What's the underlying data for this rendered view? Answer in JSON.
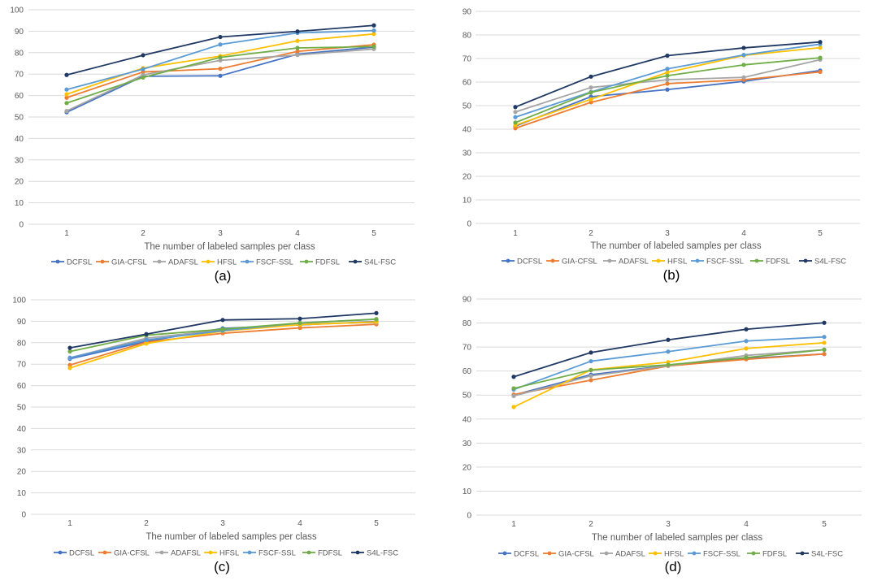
{
  "chart_data": [
    {
      "type": "line",
      "caption": "(a)",
      "title": "",
      "xlabel": "The number of labeled samples per class",
      "ylabel": "",
      "categories": [
        "1",
        "2",
        "3",
        "4",
        "5"
      ],
      "ylim": [
        0,
        100
      ],
      "yticks": [
        0,
        10,
        20,
        30,
        40,
        50,
        60,
        70,
        80,
        90,
        100
      ],
      "grid": true,
      "legend_position": "bottom",
      "series": [
        {
          "name": "DCFSL",
          "values": [
            52.2,
            69.0,
            69.2,
            79.3,
            82.6
          ]
        },
        {
          "name": "GIA-CFSL",
          "values": [
            59.0,
            71.0,
            72.5,
            80.6,
            83.7
          ]
        },
        {
          "name": "ADAFSL",
          "values": [
            52.8,
            69.6,
            76.4,
            78.9,
            81.7
          ]
        },
        {
          "name": "HFSL",
          "values": [
            60.6,
            72.8,
            78.4,
            85.5,
            88.7
          ]
        },
        {
          "name": "FSCF-SSL",
          "values": [
            62.8,
            72.3,
            83.8,
            89.2,
            90.3
          ]
        },
        {
          "name": "FDFSL",
          "values": [
            56.5,
            68.4,
            77.8,
            82.2,
            82.8
          ]
        },
        {
          "name": "S4L-FSC",
          "values": [
            69.6,
            78.8,
            87.3,
            89.9,
            92.7
          ]
        }
      ]
    },
    {
      "type": "line",
      "caption": "(b)",
      "title": "",
      "xlabel": "The number of labeled samples per class",
      "ylabel": "",
      "categories": [
        "1",
        "2",
        "3",
        "4",
        "5"
      ],
      "ylim": [
        0,
        90
      ],
      "yticks": [
        0,
        10,
        20,
        30,
        40,
        50,
        60,
        70,
        80,
        90
      ],
      "grid": true,
      "legend_position": "bottom",
      "series": [
        {
          "name": "DCFSL",
          "values": [
            41.3,
            53.8,
            56.8,
            60.3,
            64.9
          ]
        },
        {
          "name": "GIA-CFSL",
          "values": [
            40.4,
            51.4,
            59.3,
            61.0,
            64.3
          ]
        },
        {
          "name": "ADAFSL",
          "values": [
            47.3,
            57.7,
            61.0,
            62.0,
            69.5
          ]
        },
        {
          "name": "HFSL",
          "values": [
            41.7,
            52.7,
            64.1,
            71.3,
            74.6
          ]
        },
        {
          "name": "FSCF-SSL",
          "values": [
            45.1,
            55.8,
            65.6,
            71.5,
            76.1
          ]
        },
        {
          "name": "FDFSL",
          "values": [
            42.8,
            55.6,
            62.7,
            67.3,
            70.3
          ]
        },
        {
          "name": "S4L-FSC",
          "values": [
            49.4,
            62.3,
            71.2,
            74.5,
            77.0
          ]
        }
      ]
    },
    {
      "type": "line",
      "caption": "(c)",
      "title": "",
      "xlabel": "The number of labeled samples per class",
      "ylabel": "",
      "categories": [
        "1",
        "2",
        "3",
        "4",
        "5"
      ],
      "ylim": [
        0,
        100
      ],
      "yticks": [
        0,
        10,
        20,
        30,
        40,
        50,
        60,
        70,
        80,
        90,
        100
      ],
      "grid": true,
      "legend_position": "bottom",
      "series": [
        {
          "name": "DCFSL",
          "values": [
            72.5,
            80.6,
            86.7,
            88.3,
            89.9
          ]
        },
        {
          "name": "GIA-CFSL",
          "values": [
            69.6,
            80.3,
            84.4,
            86.9,
            88.6
          ]
        },
        {
          "name": "ADAFSL",
          "values": [
            72.9,
            82.1,
            86.0,
            88.8,
            89.4
          ]
        },
        {
          "name": "HFSL",
          "values": [
            68.2,
            79.6,
            85.4,
            88.4,
            89.7
          ]
        },
        {
          "name": "FSCF-SSL",
          "values": [
            73.0,
            81.3,
            85.6,
            89.2,
            90.9
          ]
        },
        {
          "name": "FDFSL",
          "values": [
            75.9,
            83.5,
            86.3,
            89.2,
            91.0
          ]
        },
        {
          "name": "S4L-FSC",
          "values": [
            77.6,
            84.0,
            90.6,
            91.2,
            93.8
          ]
        }
      ]
    },
    {
      "type": "line",
      "caption": "(d)",
      "title": "",
      "xlabel": "The number of labeled samples per class",
      "ylabel": "",
      "categories": [
        "1",
        "2",
        "3",
        "4",
        "5"
      ],
      "ylim": [
        0,
        90
      ],
      "yticks": [
        0,
        10,
        20,
        30,
        40,
        50,
        60,
        70,
        80,
        90
      ],
      "grid": true,
      "legend_position": "bottom",
      "series": [
        {
          "name": "DCFSL",
          "values": [
            50.0,
            58.5,
            62.3,
            65.2,
            67.1
          ]
        },
        {
          "name": "GIA-CFSL",
          "values": [
            50.2,
            56.2,
            62.1,
            64.9,
            67.1
          ]
        },
        {
          "name": "ADAFSL",
          "values": [
            49.6,
            58.0,
            62.2,
            66.5,
            68.9
          ]
        },
        {
          "name": "HFSL",
          "values": [
            45.0,
            60.5,
            63.7,
            69.4,
            71.8
          ]
        },
        {
          "name": "FSCF-SSL",
          "values": [
            52.3,
            64.1,
            68.1,
            72.5,
            74.2
          ]
        },
        {
          "name": "FDFSL",
          "values": [
            52.8,
            60.4,
            62.6,
            65.6,
            68.9
          ]
        },
        {
          "name": "S4L-FSC",
          "values": [
            57.6,
            67.7,
            73.0,
            77.4,
            80.1
          ]
        }
      ]
    }
  ],
  "colors": {
    "DCFSL": "#4472c4",
    "GIA-CFSL": "#ed7d31",
    "ADAFSL": "#a5a5a5",
    "HFSL": "#ffc000",
    "FSCF-SSL": "#5b9bd5",
    "FDFSL": "#70ad47",
    "S4L-FSC": "#203864",
    "grid": "#d9d9d9",
    "tick_text": "#595959"
  }
}
